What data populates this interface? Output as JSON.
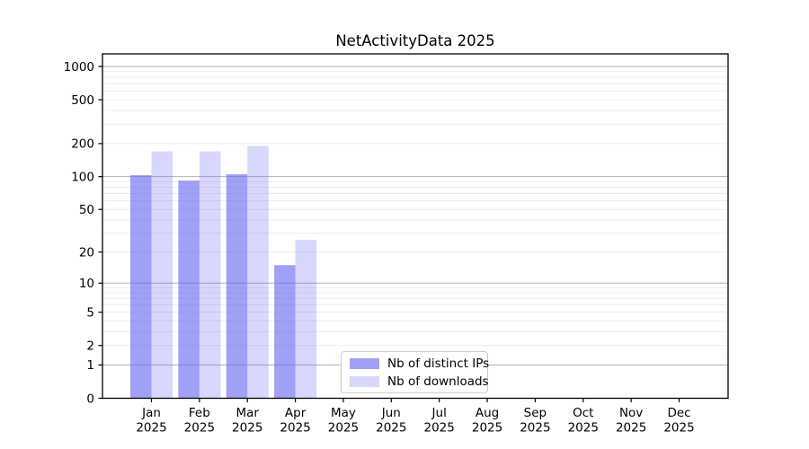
{
  "figure": {
    "background": "#ffffff"
  },
  "chart_data": {
    "type": "bar",
    "title": "NetActivityData 2025",
    "categories": [
      "Jan",
      "Feb",
      "Mar",
      "Apr",
      "May",
      "Jun",
      "Jul",
      "Aug",
      "Sep",
      "Oct",
      "Nov",
      "Dec"
    ],
    "x_tick_year": "2025",
    "series": [
      {
        "name": "Nb of distinct IPs",
        "color": "#6666ee",
        "alpha": 0.62,
        "values": [
          103,
          92,
          105,
          15,
          null,
          null,
          null,
          null,
          null,
          null,
          null,
          null
        ]
      },
      {
        "name": "Nb of downloads",
        "color": "#6666ee",
        "alpha": 0.26,
        "values": [
          170,
          170,
          190,
          26,
          null,
          null,
          null,
          null,
          null,
          null,
          null,
          null
        ]
      }
    ],
    "y_axis": {
      "scale": "log1p",
      "ticks": [
        0,
        1,
        2,
        5,
        10,
        20,
        50,
        100,
        200,
        500,
        1000
      ],
      "ylim": [
        0,
        1300
      ]
    },
    "grid": {
      "major_values": [
        1,
        10,
        100,
        1000
      ],
      "minor_values": [
        2,
        3,
        4,
        5,
        6,
        7,
        8,
        9,
        20,
        30,
        40,
        50,
        60,
        70,
        80,
        90,
        200,
        300,
        400,
        500,
        600,
        700,
        800,
        900
      ],
      "major_color": "#b0b0b0",
      "minor_color": "#ececec"
    },
    "legend": {
      "location": "lower-center"
    },
    "axes_color": "#000000",
    "grid_on": true
  }
}
